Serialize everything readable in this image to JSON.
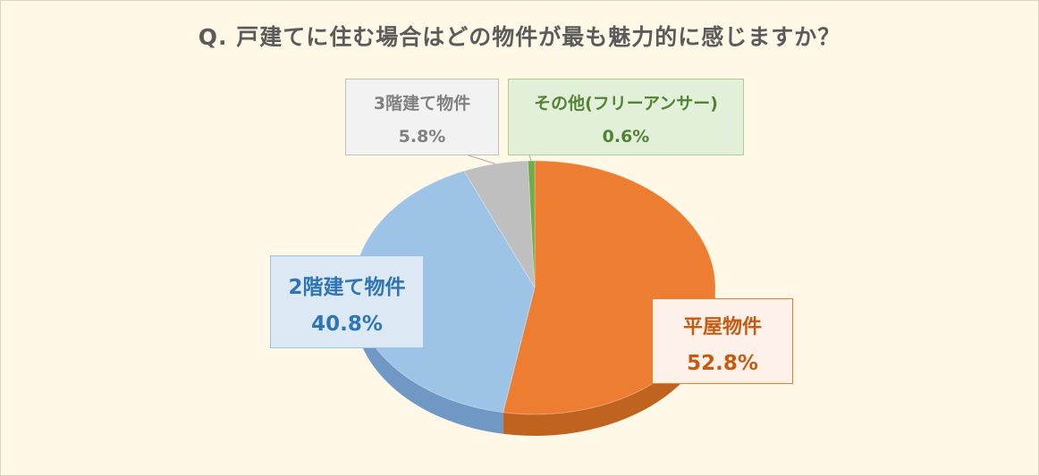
{
  "chart_data": {
    "type": "pie",
    "title": "Q. 戸建てに住む場合はどの物件が最も魅力的に感じますか？",
    "slices": [
      {
        "label": "平屋物件",
        "value": 52.8,
        "value_label": "52.8%",
        "color": "#ed7d31",
        "side_color": "#c0631f"
      },
      {
        "label": "2階建て物件",
        "value": 40.8,
        "value_label": "40.8%",
        "color": "#9dc3e6",
        "side_color": "#6f99c4"
      },
      {
        "label": "3階建て物件",
        "value": 5.8,
        "value_label": "5.8%",
        "color": "#bfbfbf",
        "side_color": "#969696"
      },
      {
        "label": "その他(フリーアンサー)",
        "value": 0.6,
        "value_label": "0.6%",
        "color": "#70ad47",
        "side_color": "#548235"
      }
    ],
    "legend": "none",
    "style": "3d"
  }
}
